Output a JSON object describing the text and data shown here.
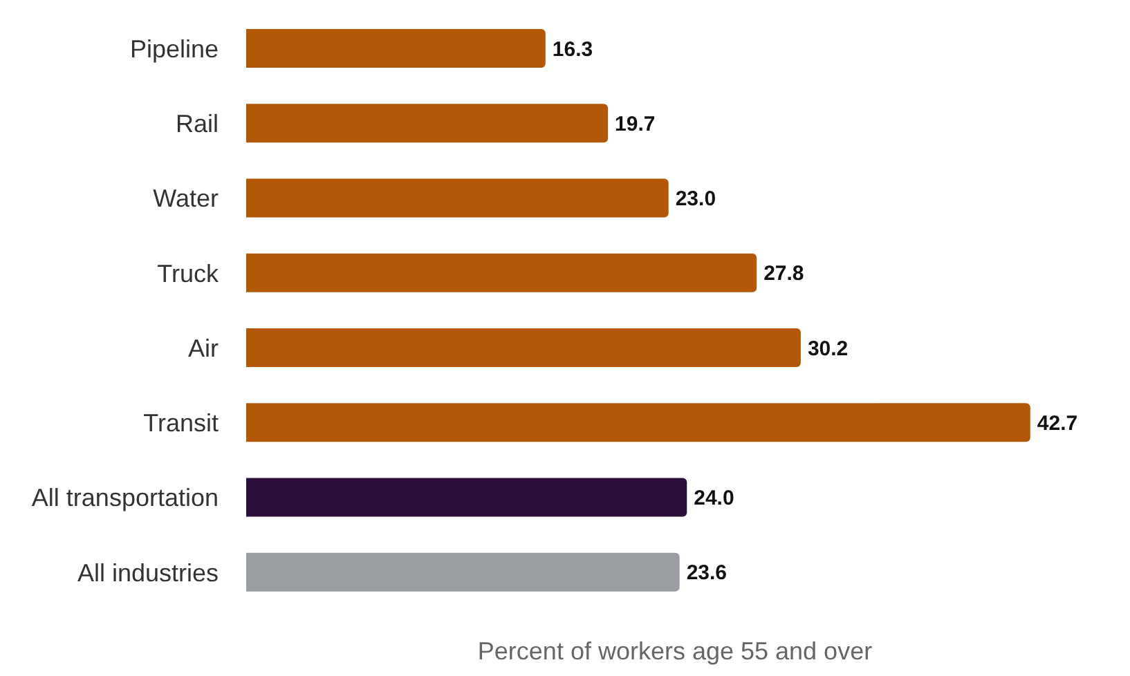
{
  "chart_data": {
    "type": "bar",
    "orientation": "horizontal",
    "categories": [
      "Pipeline",
      "Rail",
      "Water",
      "Truck",
      "Air",
      "Transit",
      "All transportation",
      "All industries"
    ],
    "values": [
      16.3,
      19.7,
      23.0,
      27.8,
      30.2,
      42.7,
      24.0,
      23.6
    ],
    "colors": [
      "#b35806",
      "#b35806",
      "#b35806",
      "#b35806",
      "#b35806",
      "#b35806",
      "#2a0f3d",
      "#9a9ea3"
    ],
    "value_labels": [
      "16.3",
      "19.7",
      "23.0",
      "27.8",
      "30.2",
      "42.7",
      "24.0",
      "23.6"
    ],
    "xlabel": "Percent of workers age 55 and over",
    "grid": false,
    "legend": false
  }
}
